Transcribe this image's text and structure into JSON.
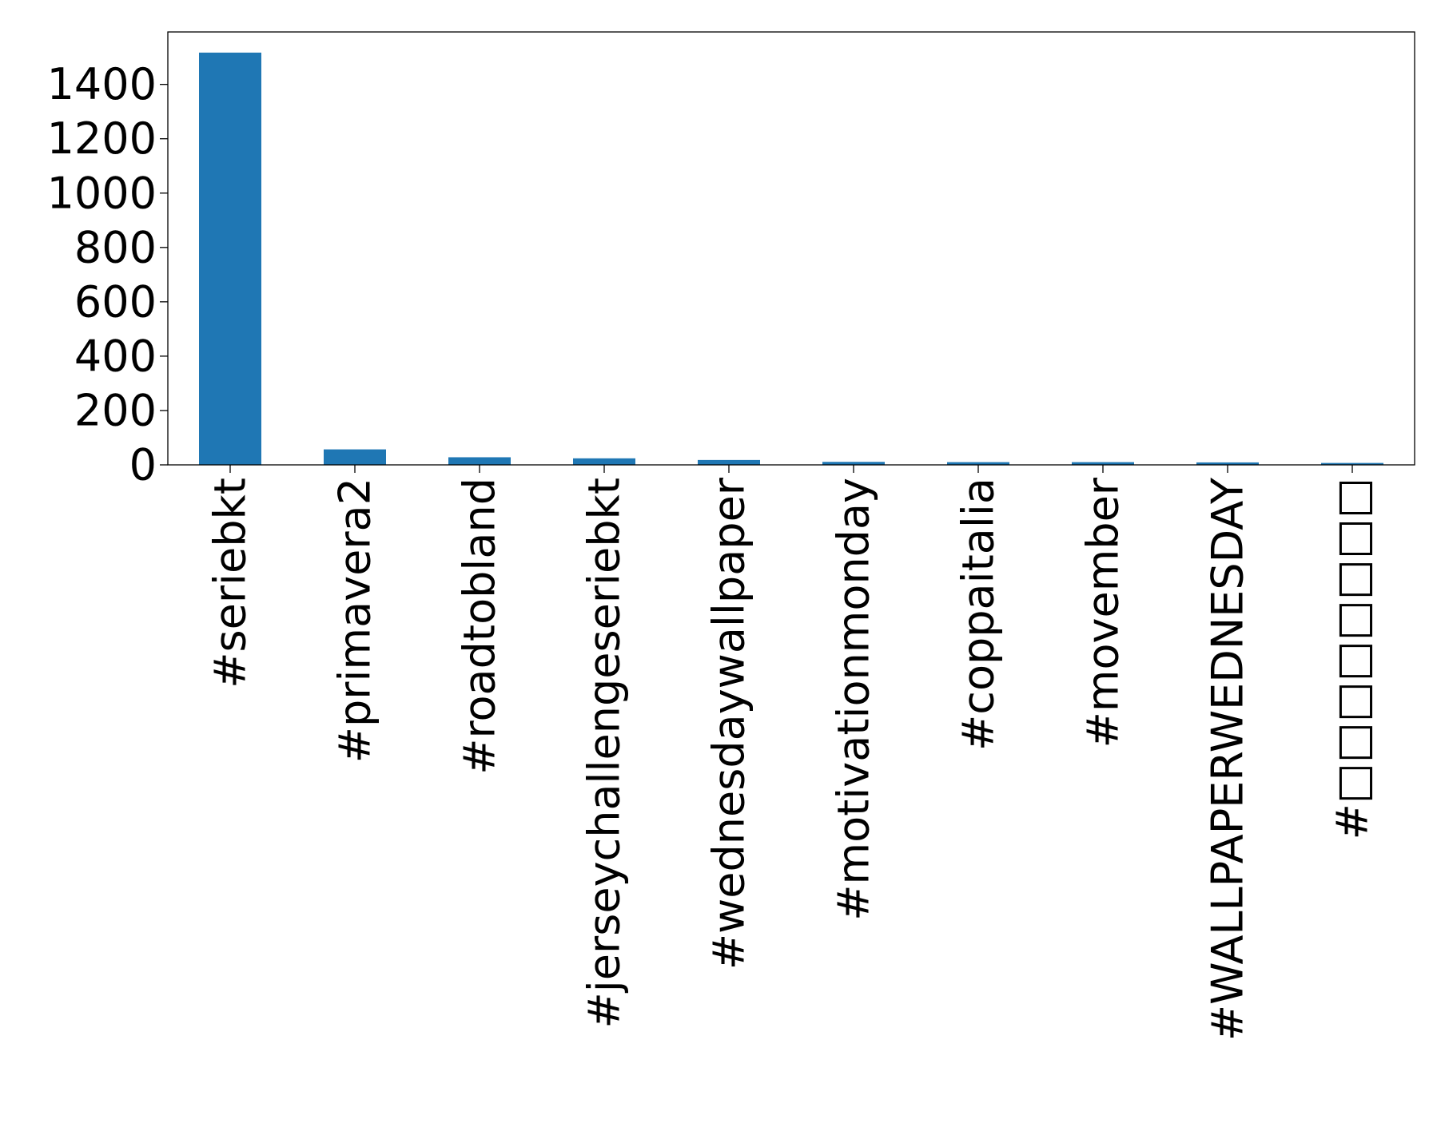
{
  "chart_data": {
    "type": "bar",
    "title": "",
    "xlabel": "",
    "ylabel": "",
    "categories": [
      "#seriebkt",
      "#primavera2",
      "#roadtobland",
      "#jerseychallengeseriebkt",
      "#wednesdaywallpaper",
      "#motivationmonday",
      "#coppaitalia",
      "#movember",
      "#WALLPAPERWEDNESDAY",
      "#□□□□□□□□"
    ],
    "values": [
      1517,
      57,
      28,
      24,
      18,
      11,
      10,
      10,
      9,
      7
    ],
    "ylim": [
      0,
      1593
    ],
    "yticks": [
      0,
      200,
      400,
      600,
      800,
      1000,
      1200,
      1400
    ],
    "bar_color": "#1f77b4",
    "grid": false,
    "legend": "none"
  }
}
